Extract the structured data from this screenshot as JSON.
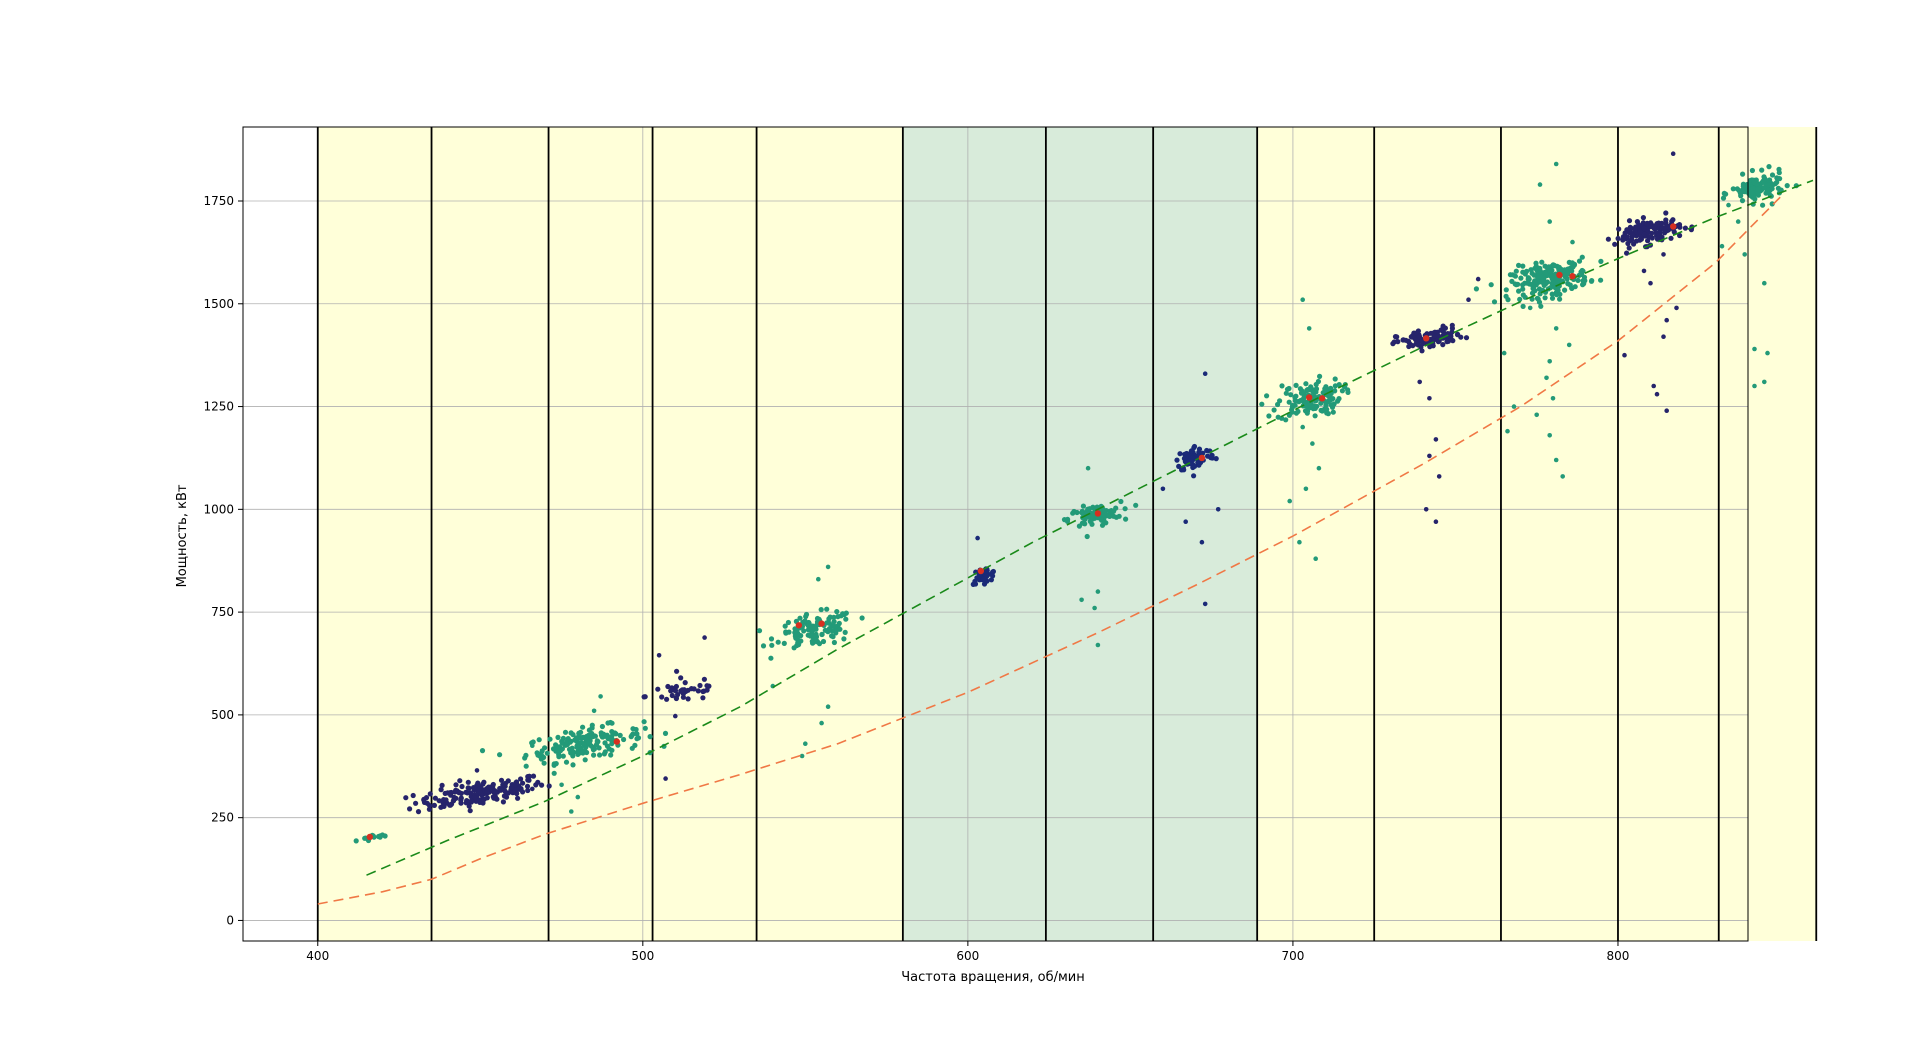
{
  "chart_data": {
    "type": "scatter",
    "title": "",
    "xlabel": "Частота вращения, об/мин",
    "ylabel": "Мощность, кВт",
    "xlim": [
      377,
      840
    ],
    "ylim": [
      -50,
      1930
    ],
    "x_ticks": [
      400,
      500,
      600,
      700,
      800
    ],
    "y_ticks": [
      0,
      250,
      500,
      750,
      1000,
      1250,
      1500,
      1750
    ],
    "grid": true,
    "legend": "none",
    "colors": {
      "band_yellow": "#ffffd9",
      "band_green": "#d8ebda",
      "band_border": "#000000",
      "points_dark": "#26246b",
      "points_teal": "#239a78",
      "points_navy": "#1a2a78",
      "markers_red": "#d73020",
      "line_green": "#1a8a1a",
      "line_orange": "#f07845",
      "grid": "#b0b0b0"
    },
    "bands": [
      {
        "x0": 400,
        "x1": 435,
        "kind": "yellow"
      },
      {
        "x0": 435,
        "x1": 471,
        "kind": "yellow"
      },
      {
        "x0": 471,
        "x1": 503,
        "kind": "yellow"
      },
      {
        "x0": 503,
        "x1": 535,
        "kind": "yellow"
      },
      {
        "x0": 535,
        "x1": 580,
        "kind": "yellow"
      },
      {
        "x0": 580,
        "x1": 624,
        "kind": "green"
      },
      {
        "x0": 624,
        "x1": 657,
        "kind": "green"
      },
      {
        "x0": 657,
        "x1": 689,
        "kind": "green"
      },
      {
        "x0": 689,
        "x1": 725,
        "kind": "yellow"
      },
      {
        "x0": 725,
        "x1": 764,
        "kind": "yellow"
      },
      {
        "x0": 764,
        "x1": 800,
        "kind": "yellow"
      },
      {
        "x0": 800,
        "x1": 831,
        "kind": "yellow"
      },
      {
        "x0": 831,
        "x1": 861,
        "kind": "yellow"
      }
    ],
    "series": [
      {
        "kind": "line",
        "style": "dashed",
        "color": "#1a8a1a",
        "x": [
          415,
          440,
          470,
          500,
          530,
          560,
          590,
          620,
          650,
          680,
          710,
          740,
          770,
          800,
          830,
          860
        ],
        "y": [
          110,
          195,
          290,
          400,
          520,
          660,
          790,
          920,
          1040,
          1160,
          1280,
          1395,
          1505,
          1610,
          1710,
          1800
        ]
      },
      {
        "kind": "line",
        "style": "dashed",
        "color": "#f07845",
        "x": [
          400,
          420,
          435,
          450,
          470,
          500,
          530,
          560,
          600,
          640,
          670,
          700,
          740,
          770,
          800,
          830,
          850
        ],
        "y": [
          40,
          70,
          100,
          150,
          210,
          285,
          355,
          430,
          555,
          700,
          815,
          935,
          1110,
          1250,
          1410,
          1600,
          1760
        ]
      },
      {
        "kind": "clusters",
        "clusters": [
          {
            "cx": 418,
            "cy": 203,
            "sx": 3,
            "sy": 4,
            "n": 12,
            "color": "teal",
            "outliers": []
          },
          {
            "cx": 450,
            "cy": 310,
            "sx": 10,
            "sy": 15,
            "n": 160,
            "color": "dark",
            "outliers": [
              [
                462,
                322
              ],
              [
                466,
                320
              ],
              [
                449,
                365
              ]
            ]
          },
          {
            "cx": 482,
            "cy": 430,
            "sx": 9,
            "sy": 18,
            "n": 170,
            "color": "teal",
            "outliers": [
              [
                487,
                545
              ],
              [
                485,
                510
              ],
              [
                480,
                300
              ],
              [
                475,
                330
              ],
              [
                466,
                425
              ],
              [
                478,
                265
              ]
            ]
          },
          {
            "cx": 513,
            "cy": 560,
            "sx": 6,
            "sy": 15,
            "n": 40,
            "color": "dark",
            "outliers": [
              [
                505,
                645
              ],
              [
                519,
                688
              ],
              [
                507,
                345
              ],
              [
                510,
                497
              ]
            ]
          },
          {
            "cx": 553,
            "cy": 705,
            "sx": 6,
            "sy": 20,
            "n": 110,
            "color": "teal",
            "outliers": [
              [
                557,
                860
              ],
              [
                554,
                830
              ],
              [
                550,
                430
              ],
              [
                555,
                480
              ],
              [
                549,
                400
              ],
              [
                540,
                570
              ],
              [
                557,
                520
              ]
            ]
          },
          {
            "cx": 605,
            "cy": 840,
            "sx": 2,
            "sy": 9,
            "n": 30,
            "color": "navy",
            "outliers": [
              [
                603,
                930
              ]
            ]
          },
          {
            "cx": 639,
            "cy": 985,
            "sx": 4,
            "sy": 12,
            "n": 90,
            "color": "teal",
            "outliers": [
              [
                639,
                760
              ],
              [
                640,
                800
              ],
              [
                635,
                780
              ],
              [
                640,
                670
              ],
              [
                637,
                1100
              ]
            ]
          },
          {
            "cx": 670,
            "cy": 1125,
            "sx": 3,
            "sy": 15,
            "n": 70,
            "color": "navy",
            "outliers": [
              [
                673,
                1330
              ],
              [
                667,
                970
              ],
              [
                672,
                920
              ],
              [
                677,
                1000
              ],
              [
                673,
                770
              ],
              [
                660,
                1050
              ]
            ]
          },
          {
            "cx": 705,
            "cy": 1268,
            "sx": 5,
            "sy": 22,
            "n": 130,
            "color": "teal",
            "outliers": [
              [
                703,
                1510
              ],
              [
                705,
                1440
              ],
              [
                707,
                880
              ],
              [
                702,
                920
              ],
              [
                708,
                1100
              ],
              [
                704,
                1050
              ],
              [
                699,
                1020
              ],
              [
                706,
                1160
              ],
              [
                703,
                1200
              ]
            ]
          },
          {
            "cx": 742,
            "cy": 1415,
            "sx": 5,
            "sy": 12,
            "n": 100,
            "color": "dark",
            "outliers": [
              [
                744,
                970
              ],
              [
                741,
                1000
              ],
              [
                745,
                1080
              ],
              [
                742,
                1130
              ],
              [
                744,
                1170
              ],
              [
                742,
                1270
              ],
              [
                739,
                1310
              ],
              [
                754,
                1510
              ],
              [
                757,
                1560
              ]
            ]
          },
          {
            "cx": 779,
            "cy": 1560,
            "sx": 6,
            "sy": 20,
            "n": 200,
            "color": "teal",
            "outliers": [
              [
                776,
                1790
              ],
              [
                781,
                1840
              ],
              [
                783,
                1080
              ],
              [
                781,
                1120
              ],
              [
                779,
                1180
              ],
              [
                775,
                1230
              ],
              [
                780,
                1270
              ],
              [
                778,
                1320
              ],
              [
                779,
                1360
              ],
              [
                785,
                1400
              ],
              [
                781,
                1440
              ],
              [
                766,
                1190
              ],
              [
                768,
                1250
              ],
              [
                765,
                1380
              ],
              [
                773,
                1490
              ],
              [
                779,
                1700
              ],
              [
                786,
                1650
              ]
            ]
          },
          {
            "cx": 809,
            "cy": 1675,
            "sx": 5,
            "sy": 15,
            "n": 130,
            "color": "dark",
            "outliers": [
              [
                817,
                1865
              ],
              [
                815,
                1240
              ],
              [
                812,
                1280
              ],
              [
                811,
                1300
              ],
              [
                814,
                1420
              ],
              [
                815,
                1460
              ],
              [
                818,
                1490
              ],
              [
                810,
                1550
              ],
              [
                808,
                1580
              ],
              [
                802,
                1375
              ],
              [
                814,
                1620
              ]
            ]
          },
          {
            "cx": 843,
            "cy": 1780,
            "sx": 4,
            "sy": 17,
            "n": 110,
            "color": "teal",
            "outliers": [
              [
                842,
                1300
              ],
              [
                845,
                1310
              ],
              [
                842,
                1390
              ],
              [
                846,
                1380
              ],
              [
                845,
                1550
              ],
              [
                839,
                1620
              ],
              [
                837,
                1700
              ],
              [
                832,
                1640
              ],
              [
                834,
                1740
              ]
            ]
          }
        ]
      },
      {
        "kind": "markers",
        "color": "#d73020",
        "x": [
          416,
          492,
          548,
          555,
          604,
          640,
          672,
          705,
          709,
          741,
          782,
          786,
          817
        ],
        "y": [
          203,
          435,
          718,
          722,
          850,
          990,
          1125,
          1272,
          1270,
          1416,
          1570,
          1567,
          1688
        ]
      }
    ]
  }
}
